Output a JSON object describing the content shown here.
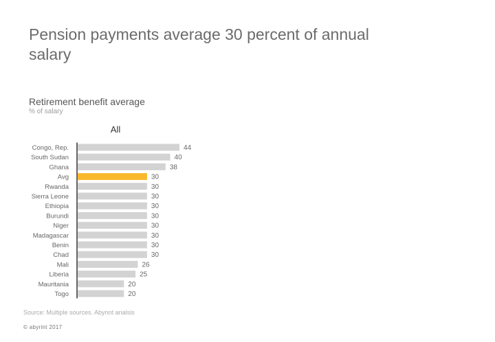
{
  "headline": "Pension payments average 30 percent of annual salary",
  "subtitle": "Retirement benefit average",
  "unit": "% of salary",
  "panel_title": "All",
  "source": "Source: Multiple sources. Abynnt analsis",
  "copyright": "© abyrint 2017",
  "colors": {
    "bar": "#d3d3d3",
    "highlight": "#f9b92c",
    "axis": "#333333"
  },
  "chart_data": {
    "type": "bar",
    "orientation": "horizontal",
    "title": "All",
    "categories": [
      "Congo, Rep.",
      "South Sudan",
      "Ghana",
      "Avg",
      "Rwanda",
      "Sierra Leone",
      "Ethiopia",
      "Burundi",
      "Niger",
      "Madagascar",
      "Benin",
      "Chad",
      "Mali",
      "Liberia",
      "Mauritania",
      "Togo"
    ],
    "values": [
      44,
      40,
      38,
      30,
      30,
      30,
      30,
      30,
      30,
      30,
      30,
      30,
      26,
      25,
      20,
      20
    ],
    "highlight_category": "Avg",
    "xlim": [
      0,
      50
    ],
    "grid": false,
    "legend": "none"
  }
}
